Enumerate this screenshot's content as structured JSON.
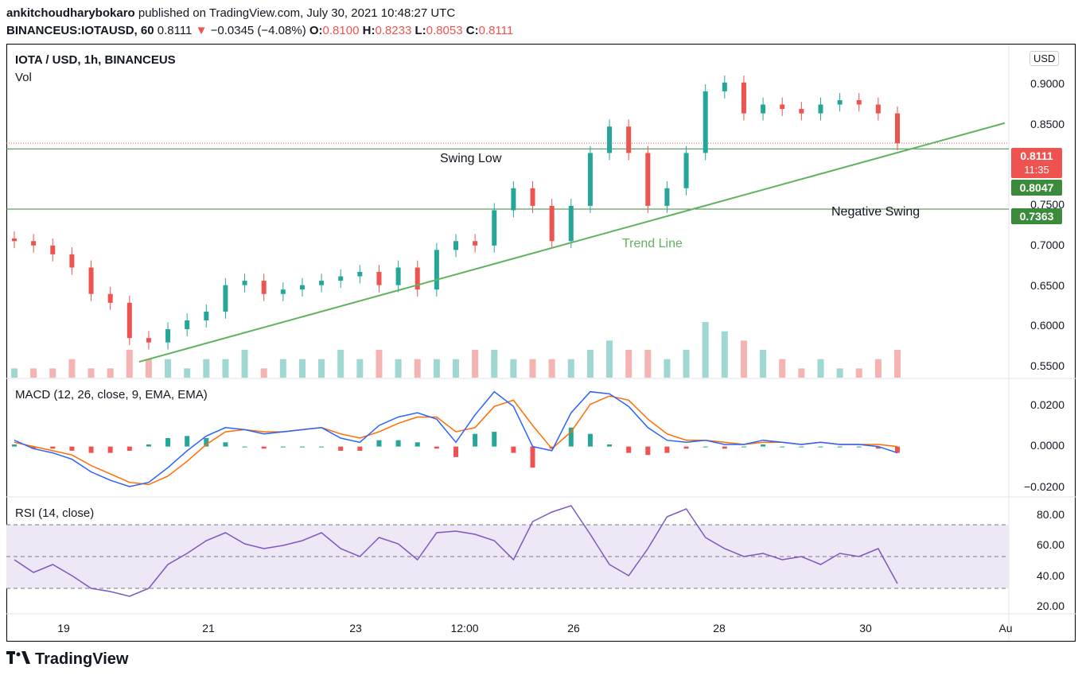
{
  "header": {
    "publisher": "ankitchoudharybokaro",
    "published_text": "published on TradingView.com, July 30, 2021 10:48:27 UTC",
    "symbol": "BINANCEUS:IOTAUSD, 60",
    "last": "0.8111",
    "change": "−0.0345 (−4.08%)",
    "o_label": "O:",
    "o_val": "0.8100",
    "h_label": "H:",
    "h_val": "0.8233",
    "l_label": "L:",
    "l_val": "0.8053",
    "c_label": "C:",
    "c_val": "0.8111"
  },
  "price_pane": {
    "title": "IOTA / USD, 1h, BINANCEUS",
    "vol_label": "Vol",
    "currency_button": "USD",
    "y_ticks": [
      "0.9000",
      "0.8500",
      "0.7500",
      "0.7000",
      "0.6500",
      "0.6000",
      "0.5500"
    ],
    "last_price_tag": "0.8111",
    "countdown": "11:35",
    "level_tags": [
      "0.8047",
      "0.7363"
    ],
    "annotations": {
      "swing_low": "Swing Low",
      "negative_swing": "Negative Swing",
      "trend_line": "Trend Line"
    }
  },
  "macd_pane": {
    "title": "MACD (12, 26, close, 9, EMA, EMA)",
    "y_ticks": [
      "0.0200",
      "0.0000",
      "−0.0200"
    ]
  },
  "rsi_pane": {
    "title": "RSI (14, close)",
    "y_ticks": [
      "80.00",
      "60.00",
      "40.00",
      "20.00"
    ]
  },
  "x_axis": [
    "19",
    "21",
    "23",
    "12:00",
    "26",
    "28",
    "30",
    "Au"
  ],
  "logo_text": "TradingView",
  "colors": {
    "up": "#26a69a",
    "down": "#ef5350",
    "macd": "#2962ff",
    "signal": "#ff6d00",
    "rsi": "#7e57c2",
    "trend": "#5fb35f",
    "level": "#3c8a3c"
  },
  "chart_data": [
    {
      "type": "candlestick",
      "title": "IOTA / USD, 1h, BINANCEUS",
      "ylim": [
        0.545,
        0.915
      ],
      "horizontal_levels": [
        0.8047,
        0.7363
      ],
      "last_price": 0.8111,
      "trend_line": {
        "from": [
          "Jul 20 12:00",
          0.563
        ],
        "to": [
          "Jul 31 00:00",
          0.834
        ]
      },
      "x": [
        "Jul 18 18:00",
        "Jul 19 00:00",
        "Jul 19 06:00",
        "Jul 19 12:00",
        "Jul 19 18:00",
        "Jul 20 00:00",
        "Jul 20 06:00",
        "Jul 20 12:00",
        "Jul 20 18:00",
        "Jul 21 00:00",
        "Jul 21 06:00",
        "Jul 21 12:00",
        "Jul 21 18:00",
        "Jul 22 00:00",
        "Jul 22 06:00",
        "Jul 22 12:00",
        "Jul 22 18:00",
        "Jul 23 00:00",
        "Jul 23 06:00",
        "Jul 23 12:00",
        "Jul 23 18:00",
        "Jul 24 00:00",
        "Jul 24 06:00",
        "Jul 24 12:00",
        "Jul 24 18:00",
        "Jul 25 00:00",
        "Jul 25 06:00",
        "Jul 25 12:00",
        "Jul 25 18:00",
        "Jul 26 00:00",
        "Jul 26 06:00",
        "Jul 26 12:00",
        "Jul 26 18:00",
        "Jul 27 00:00",
        "Jul 27 06:00",
        "Jul 27 12:00",
        "Jul 27 18:00",
        "Jul 28 00:00",
        "Jul 28 06:00",
        "Jul 28 12:00",
        "Jul 28 18:00",
        "Jul 29 00:00",
        "Jul 29 06:00",
        "Jul 29 12:00",
        "Jul 29 18:00",
        "Jul 30 00:00",
        "Jul 30 06:00"
      ],
      "close": [
        0.7,
        0.695,
        0.685,
        0.67,
        0.64,
        0.63,
        0.59,
        0.585,
        0.6,
        0.61,
        0.62,
        0.65,
        0.655,
        0.64,
        0.645,
        0.65,
        0.655,
        0.66,
        0.665,
        0.65,
        0.67,
        0.645,
        0.69,
        0.7,
        0.695,
        0.735,
        0.76,
        0.74,
        0.7,
        0.74,
        0.8,
        0.83,
        0.8,
        0.74,
        0.76,
        0.8,
        0.87,
        0.88,
        0.845,
        0.855,
        0.85,
        0.845,
        0.855,
        0.86,
        0.855,
        0.845,
        0.811
      ],
      "volume": [
        1,
        1,
        1,
        2,
        1,
        1,
        3,
        2,
        2,
        1,
        2,
        2,
        3,
        1,
        2,
        2,
        2,
        3,
        2,
        3,
        2,
        2,
        2,
        2,
        3,
        3,
        2,
        2,
        2,
        2,
        3,
        4,
        3,
        3,
        2,
        3,
        6,
        5,
        4,
        3,
        2,
        1,
        2,
        1,
        1,
        2,
        3
      ]
    },
    {
      "type": "line",
      "title": "MACD (12, 26, close, 9, EMA, EMA)",
      "ylim": [
        -0.022,
        0.027
      ],
      "series": [
        {
          "values": [
            0.003,
            -0.001,
            -0.003,
            -0.006,
            -0.012,
            -0.016,
            -0.019,
            -0.017,
            -0.01,
            -0.002,
            0.005,
            0.009,
            0.008,
            0.006,
            0.007,
            0.008,
            0.009,
            0.004,
            0.002,
            0.01,
            0.014,
            0.016,
            0.013,
            0.002,
            0.015,
            0.026,
            0.019,
            0.0,
            -0.002,
            0.016,
            0.026,
            0.025,
            0.019,
            0.009,
            0.003,
            0.002,
            0.003,
            0.001,
            0.001,
            0.003,
            0.002,
            0.001,
            0.002,
            0.001,
            0.001,
            0.0,
            -0.003
          ]
        },
        {
          "values": [
            0.002,
            0.0,
            -0.002,
            -0.004,
            -0.009,
            -0.013,
            -0.017,
            -0.018,
            -0.014,
            -0.007,
            0.001,
            0.007,
            0.008,
            0.007,
            0.007,
            0.008,
            0.009,
            0.006,
            0.004,
            0.007,
            0.011,
            0.014,
            0.014,
            0.007,
            0.009,
            0.019,
            0.022,
            0.01,
            -0.001,
            0.007,
            0.02,
            0.024,
            0.022,
            0.013,
            0.006,
            0.003,
            0.003,
            0.002,
            0.001,
            0.002,
            0.002,
            0.001,
            0.002,
            0.001,
            0.001,
            0.001,
            0.0
          ]
        }
      ]
    },
    {
      "type": "line",
      "title": "RSI (14, close)",
      "ylim": [
        15,
        85
      ],
      "bands": [
        70,
        50,
        30
      ],
      "series": [
        {
          "values": [
            48,
            40,
            45,
            38,
            30,
            28,
            25,
            30,
            45,
            52,
            60,
            65,
            58,
            55,
            57,
            60,
            65,
            55,
            50,
            62,
            58,
            48,
            65,
            66,
            64,
            60,
            48,
            72,
            78,
            82,
            64,
            45,
            38,
            55,
            75,
            80,
            62,
            55,
            50,
            52,
            48,
            50,
            45,
            52,
            50,
            55,
            33
          ]
        }
      ]
    }
  ]
}
